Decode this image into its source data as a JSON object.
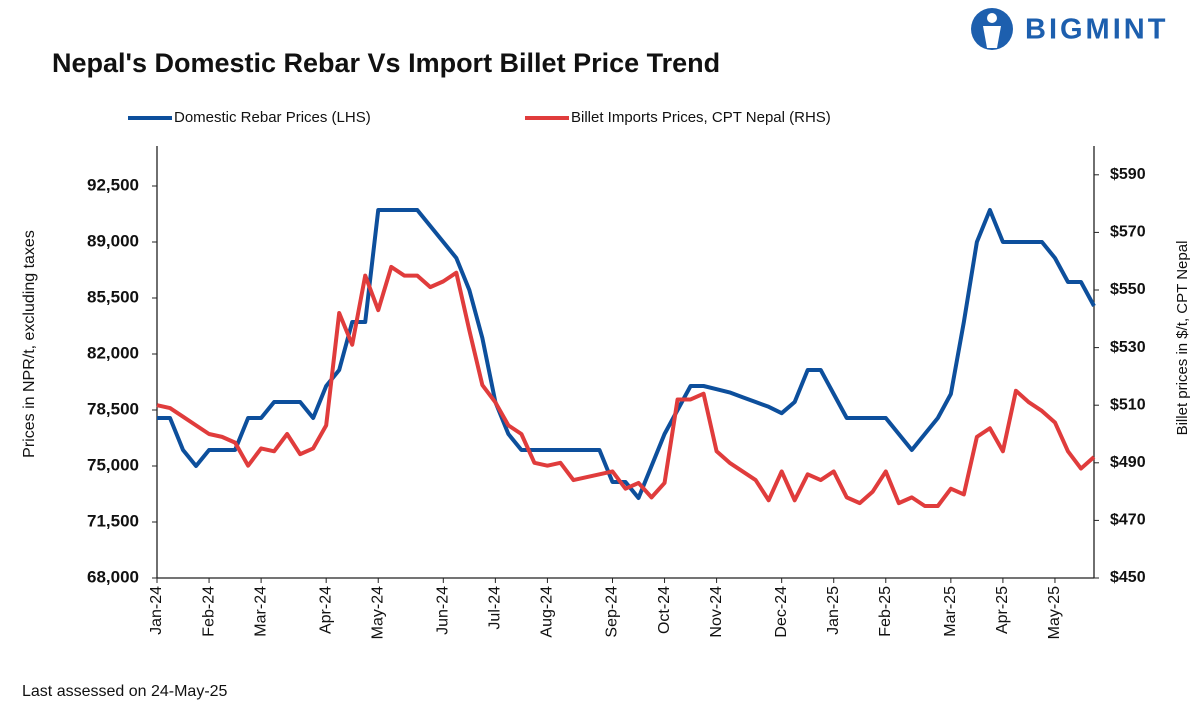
{
  "logo": "BIGMINT",
  "chart_data": {
    "type": "line",
    "title": "Nepal's Domestic Rebar Vs Import Billet Price Trend",
    "ylabel": "Prices in NPR/t, excluding taxes",
    "y2label": "Billet prices in $/t, CPT Nepal",
    "note": "Last assessed on 24-May-25",
    "categories": [
      "Jan-24",
      null,
      null,
      null,
      "Feb-24",
      null,
      null,
      null,
      "Mar-24",
      null,
      null,
      null,
      null,
      "Apr-24",
      null,
      null,
      null,
      "May-24",
      null,
      null,
      null,
      null,
      "Jun-24",
      null,
      null,
      null,
      "Jul-24",
      null,
      null,
      null,
      "Aug-24",
      null,
      null,
      null,
      null,
      "Sep-24",
      null,
      null,
      null,
      "Oct-24",
      null,
      null,
      null,
      "Nov-24",
      null,
      null,
      null,
      null,
      "Dec-24",
      null,
      null,
      null,
      "Jan-25",
      null,
      null,
      null,
      "Feb-25",
      null,
      null,
      null,
      null,
      "Mar-25",
      null,
      null,
      null,
      "Apr-25",
      null,
      null,
      null,
      "May-25",
      null,
      null,
      null
    ],
    "series": [
      {
        "name": "Domestic Rebar Prices (LHS)",
        "color": "#0d4f9c",
        "axis": "y",
        "values": [
          78000,
          78000,
          76000,
          75000,
          76000,
          76000,
          76000,
          78000,
          78000,
          79000,
          79000,
          79000,
          78000,
          80000,
          81000,
          84000,
          84000,
          91000,
          91000,
          91000,
          91000,
          90000,
          89000,
          88000,
          86000,
          83000,
          79000,
          77000,
          76000,
          76000,
          76000,
          76000,
          76000,
          76000,
          76000,
          74000,
          74000,
          73000,
          75000,
          77000,
          78500,
          80000,
          80000,
          79800,
          79600,
          79300,
          79000,
          78700,
          78300,
          79000,
          81000,
          81000,
          79500,
          78000,
          78000,
          78000,
          78000,
          77000,
          76000,
          77000,
          78000,
          79500,
          84000,
          89000,
          91000,
          89000,
          89000,
          89000,
          89000,
          88000,
          86500,
          86500,
          85000
        ]
      },
      {
        "name": "Billet Imports Prices, CPT Nepal (RHS)",
        "color": "#e03c3c",
        "axis": "y2",
        "values": [
          510,
          509,
          506,
          503,
          500,
          499,
          497,
          489,
          495,
          494,
          500,
          493,
          495,
          503,
          542,
          531,
          555,
          543,
          558,
          555,
          555,
          551,
          553,
          556,
          536,
          517,
          511,
          503,
          500,
          490,
          489,
          490,
          484,
          485,
          486,
          487,
          481,
          483,
          478,
          483,
          512,
          512,
          514,
          494,
          490,
          487,
          484,
          477,
          487,
          477,
          486,
          484,
          487,
          478,
          476,
          480,
          487,
          476,
          478,
          475,
          475,
          481,
          479,
          499,
          502,
          494,
          515,
          511,
          508,
          504,
          494,
          488,
          492
        ]
      }
    ],
    "ylim": [
      68000,
      95000
    ],
    "yticks": [
      {
        "value": 68000,
        "label": "68,000"
      },
      {
        "value": 71500,
        "label": "71,500"
      },
      {
        "value": 75000,
        "label": "75,000"
      },
      {
        "value": 78500,
        "label": "78,500"
      },
      {
        "value": 82000,
        "label": "82,000"
      },
      {
        "value": 85500,
        "label": "85,500"
      },
      {
        "value": 89000,
        "label": "89,000"
      },
      {
        "value": 92500,
        "label": "92,500"
      }
    ],
    "y2lim": [
      450,
      600
    ],
    "y2ticks": [
      {
        "value": 450,
        "label": "$450"
      },
      {
        "value": 470,
        "label": "$470"
      },
      {
        "value": 490,
        "label": "$490"
      },
      {
        "value": 510,
        "label": "$510"
      },
      {
        "value": 530,
        "label": "$530"
      },
      {
        "value": 550,
        "label": "$550"
      },
      {
        "value": 570,
        "label": "$570"
      },
      {
        "value": 590,
        "label": "$590"
      }
    ],
    "grid": false,
    "legend": "top"
  }
}
